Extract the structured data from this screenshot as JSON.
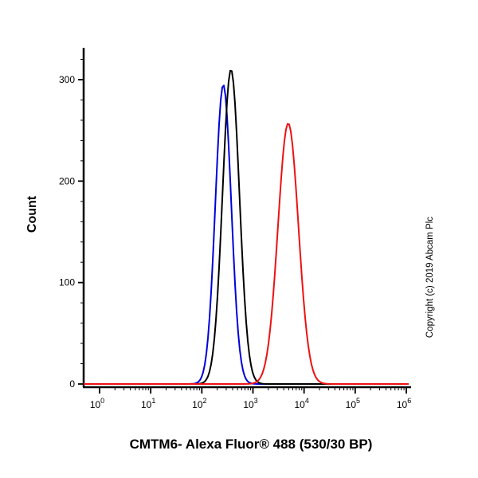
{
  "figure": {
    "background": "#ffffff",
    "copyright": "Copyright (c) 2019 Abcam Plc"
  },
  "chart_data": {
    "type": "line",
    "subtype": "flow-cytometry-histogram",
    "title": "CMTM6- Alexa Fluor® 488 (530/30 BP)",
    "xlabel": "CMTM6- Alexa Fluor® 488 (530/30 BP)",
    "ylabel": "Count",
    "x_scale": "log10",
    "x_range_exponents": [
      0,
      6
    ],
    "ylim": [
      0,
      300
    ],
    "x_tick_exponents": [
      0,
      1,
      2,
      3,
      4,
      5,
      6
    ],
    "y_major_ticks": [
      0,
      100,
      200,
      300
    ],
    "y_minor_tick_step": 20,
    "grid": false,
    "legend": "none",
    "axis_color": "#000000",
    "series": [
      {
        "name": "blue-curve",
        "color": "#0000dd",
        "peak_count": 295,
        "peak_log10_x": 2.42,
        "peak_x_approx": 263,
        "sigma_log10": 0.155
      },
      {
        "name": "black-curve",
        "color": "#000000",
        "peak_count": 310,
        "peak_log10_x": 2.57,
        "peak_x_approx": 372,
        "sigma_log10": 0.165
      },
      {
        "name": "red-curve",
        "color": "#ee1111",
        "peak_count": 257,
        "peak_log10_x": 3.69,
        "peak_x_approx": 4900,
        "sigma_log10": 0.2
      }
    ]
  }
}
